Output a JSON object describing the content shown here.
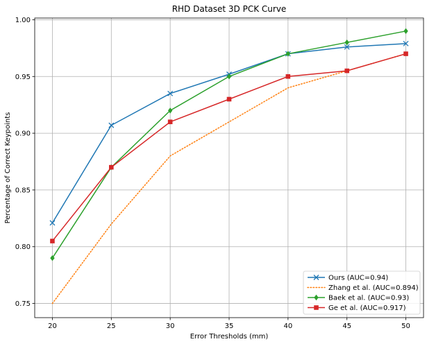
{
  "chart_data": {
    "type": "line",
    "title": "RHD Dataset 3D PCK Curve",
    "xlabel": "Error Thresholds (mm)",
    "ylabel": "Percentage of Correct Keypoints",
    "x": [
      20,
      25,
      30,
      35,
      40,
      45,
      50
    ],
    "xlim": [
      18.5,
      51.5
    ],
    "ylim": [
      0.7375,
      1.0015
    ],
    "xticks": [
      "20",
      "25",
      "30",
      "35",
      "40",
      "45",
      "50"
    ],
    "yticks": [
      "0.75",
      "0.80",
      "0.85",
      "0.90",
      "0.95",
      "1.00"
    ],
    "grid": true,
    "legend_position": "lower-right",
    "series": [
      {
        "name": "Ours (AUC=0.94)",
        "color": "#1f77b4",
        "line": "solid",
        "marker": "x",
        "values": [
          0.821,
          0.907,
          0.935,
          0.952,
          0.97,
          0.976,
          0.979
        ]
      },
      {
        "name": "Zhang et al. (AUC=0.894)",
        "color": "#ff7f0e",
        "line": "dotted",
        "marker": "none",
        "values": [
          0.75,
          0.82,
          0.88,
          0.91,
          0.94,
          0.955,
          0.97
        ]
      },
      {
        "name": "Baek et al. (AUC=0.93)",
        "color": "#2ca02c",
        "line": "solid",
        "marker": "diamond",
        "values": [
          0.79,
          0.87,
          0.92,
          0.95,
          0.97,
          0.98,
          0.99
        ]
      },
      {
        "name": "Ge et al. (AUC=0.917)",
        "color": "#d62728",
        "line": "solid",
        "marker": "square",
        "values": [
          0.805,
          0.87,
          0.91,
          0.93,
          0.95,
          0.955,
          0.97
        ]
      }
    ]
  }
}
